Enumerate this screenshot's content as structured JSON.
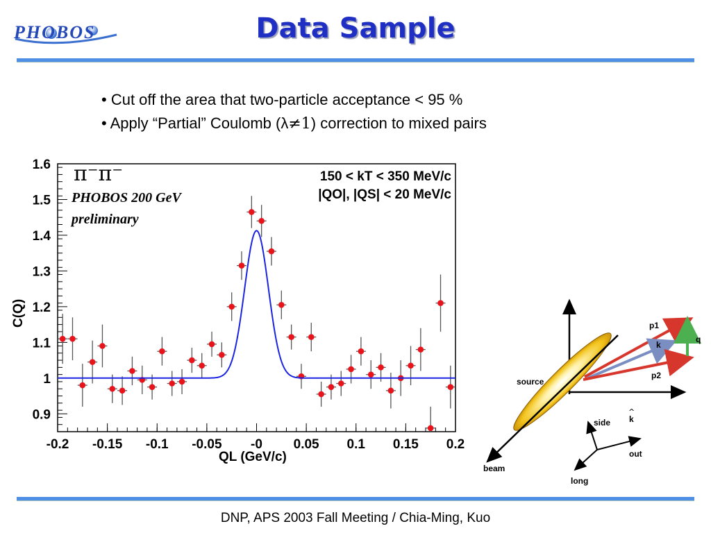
{
  "header": {
    "logo_text": "PHOBOS",
    "title": "Data Sample"
  },
  "bullets": {
    "item1": "Cut off the area that two-particle acceptance < 95 %",
    "item2_pre": "Apply “Partial” Coulomb (λ",
    "item2_neq": "≠",
    "item2_one": "1",
    "item2_post": ") correction to mixed pairs",
    "marker": "•"
  },
  "chart_data": {
    "type": "scatter",
    "particle_label": "π⁻π⁻",
    "experiment_label": "PHOBOS 200 GeV",
    "status_label": "preliminary",
    "cut_label_1": "150 < kT < 350 MeV/c",
    "cut_label_2": "|QO|, |QS| < 20 MeV/c",
    "xlabel": "QL (GeV/c)",
    "ylabel": "C(Q)",
    "xlim": [
      -0.2,
      0.2
    ],
    "ylim": [
      0.85,
      1.6
    ],
    "xticks": [
      -0.2,
      -0.15,
      -0.1,
      -0.05,
      0,
      0.05,
      0.1,
      0.15,
      0.2
    ],
    "xtick_labels": [
      "-0.2",
      "-0.15",
      "-0.1",
      "-0.05",
      "-0",
      "0.05",
      "0.1",
      "0.15",
      "0.2"
    ],
    "yticks": [
      0.9,
      1.0,
      1.1,
      1.2,
      1.3,
      1.4,
      1.5,
      1.6
    ],
    "ytick_labels": [
      "0.9",
      "1",
      "1.1",
      "1.2",
      "1.3",
      "1.4",
      "1.5",
      "1.6"
    ],
    "points": [
      {
        "x": -0.195,
        "y": 1.11,
        "err": 0.07
      },
      {
        "x": -0.185,
        "y": 1.11,
        "err": 0.06
      },
      {
        "x": -0.175,
        "y": 0.98,
        "err": 0.06
      },
      {
        "x": -0.165,
        "y": 1.045,
        "err": 0.06
      },
      {
        "x": -0.155,
        "y": 1.09,
        "err": 0.06
      },
      {
        "x": -0.145,
        "y": 0.97,
        "err": 0.04
      },
      {
        "x": -0.135,
        "y": 0.965,
        "err": 0.04
      },
      {
        "x": -0.125,
        "y": 1.02,
        "err": 0.04
      },
      {
        "x": -0.115,
        "y": 0.995,
        "err": 0.04
      },
      {
        "x": -0.105,
        "y": 0.975,
        "err": 0.035
      },
      {
        "x": -0.095,
        "y": 1.075,
        "err": 0.04
      },
      {
        "x": -0.085,
        "y": 0.985,
        "err": 0.035
      },
      {
        "x": -0.075,
        "y": 0.99,
        "err": 0.035
      },
      {
        "x": -0.065,
        "y": 1.05,
        "err": 0.035
      },
      {
        "x": -0.055,
        "y": 1.035,
        "err": 0.035
      },
      {
        "x": -0.045,
        "y": 1.095,
        "err": 0.035
      },
      {
        "x": -0.035,
        "y": 1.065,
        "err": 0.035
      },
      {
        "x": -0.025,
        "y": 1.2,
        "err": 0.04
      },
      {
        "x": -0.015,
        "y": 1.315,
        "err": 0.04
      },
      {
        "x": -0.005,
        "y": 1.465,
        "err": 0.045
      },
      {
        "x": 0.005,
        "y": 1.44,
        "err": 0.045
      },
      {
        "x": 0.015,
        "y": 1.355,
        "err": 0.04
      },
      {
        "x": 0.025,
        "y": 1.205,
        "err": 0.04
      },
      {
        "x": 0.035,
        "y": 1.115,
        "err": 0.035
      },
      {
        "x": 0.045,
        "y": 1.005,
        "err": 0.035
      },
      {
        "x": 0.055,
        "y": 1.115,
        "err": 0.04
      },
      {
        "x": 0.065,
        "y": 0.955,
        "err": 0.035
      },
      {
        "x": 0.075,
        "y": 0.975,
        "err": 0.035
      },
      {
        "x": 0.085,
        "y": 0.985,
        "err": 0.035
      },
      {
        "x": 0.095,
        "y": 1.025,
        "err": 0.04
      },
      {
        "x": 0.105,
        "y": 1.075,
        "err": 0.04
      },
      {
        "x": 0.115,
        "y": 1.01,
        "err": 0.04
      },
      {
        "x": 0.125,
        "y": 1.03,
        "err": 0.04
      },
      {
        "x": 0.135,
        "y": 0.965,
        "err": 0.05
      },
      {
        "x": 0.145,
        "y": 1.0,
        "err": 0.05
      },
      {
        "x": 0.155,
        "y": 1.035,
        "err": 0.055
      },
      {
        "x": 0.165,
        "y": 1.08,
        "err": 0.06
      },
      {
        "x": 0.175,
        "y": 0.86,
        "err": 0.06
      },
      {
        "x": 0.185,
        "y": 1.21,
        "err": 0.08
      },
      {
        "x": 0.195,
        "y": 0.975,
        "err": 0.06
      }
    ],
    "fit": {
      "baseline": 1.0,
      "amplitude": 0.413,
      "center": 0.0,
      "sigma": 0.012
    },
    "colors": {
      "points": "#e8141c",
      "errors": "#555555",
      "fit": "#1a24e0",
      "axis": "#000000"
    },
    "grid": false,
    "legend": "none"
  },
  "diagram": {
    "labels": {
      "p1": "p1",
      "k": "k",
      "q": "q",
      "p2": "p2",
      "source": "source",
      "side": "side",
      "khat": "k",
      "out": "out",
      "beam": "beam",
      "long": "long"
    },
    "colors": {
      "arrow_red": "#d6362c",
      "arrow_blue": "#7a8ec2",
      "arrow_green": "#4caf50",
      "source": "#f2c31a"
    }
  },
  "footer": {
    "text": "DNP, APS 2003 Fall Meeting / Chia-Ming, Kuo"
  }
}
